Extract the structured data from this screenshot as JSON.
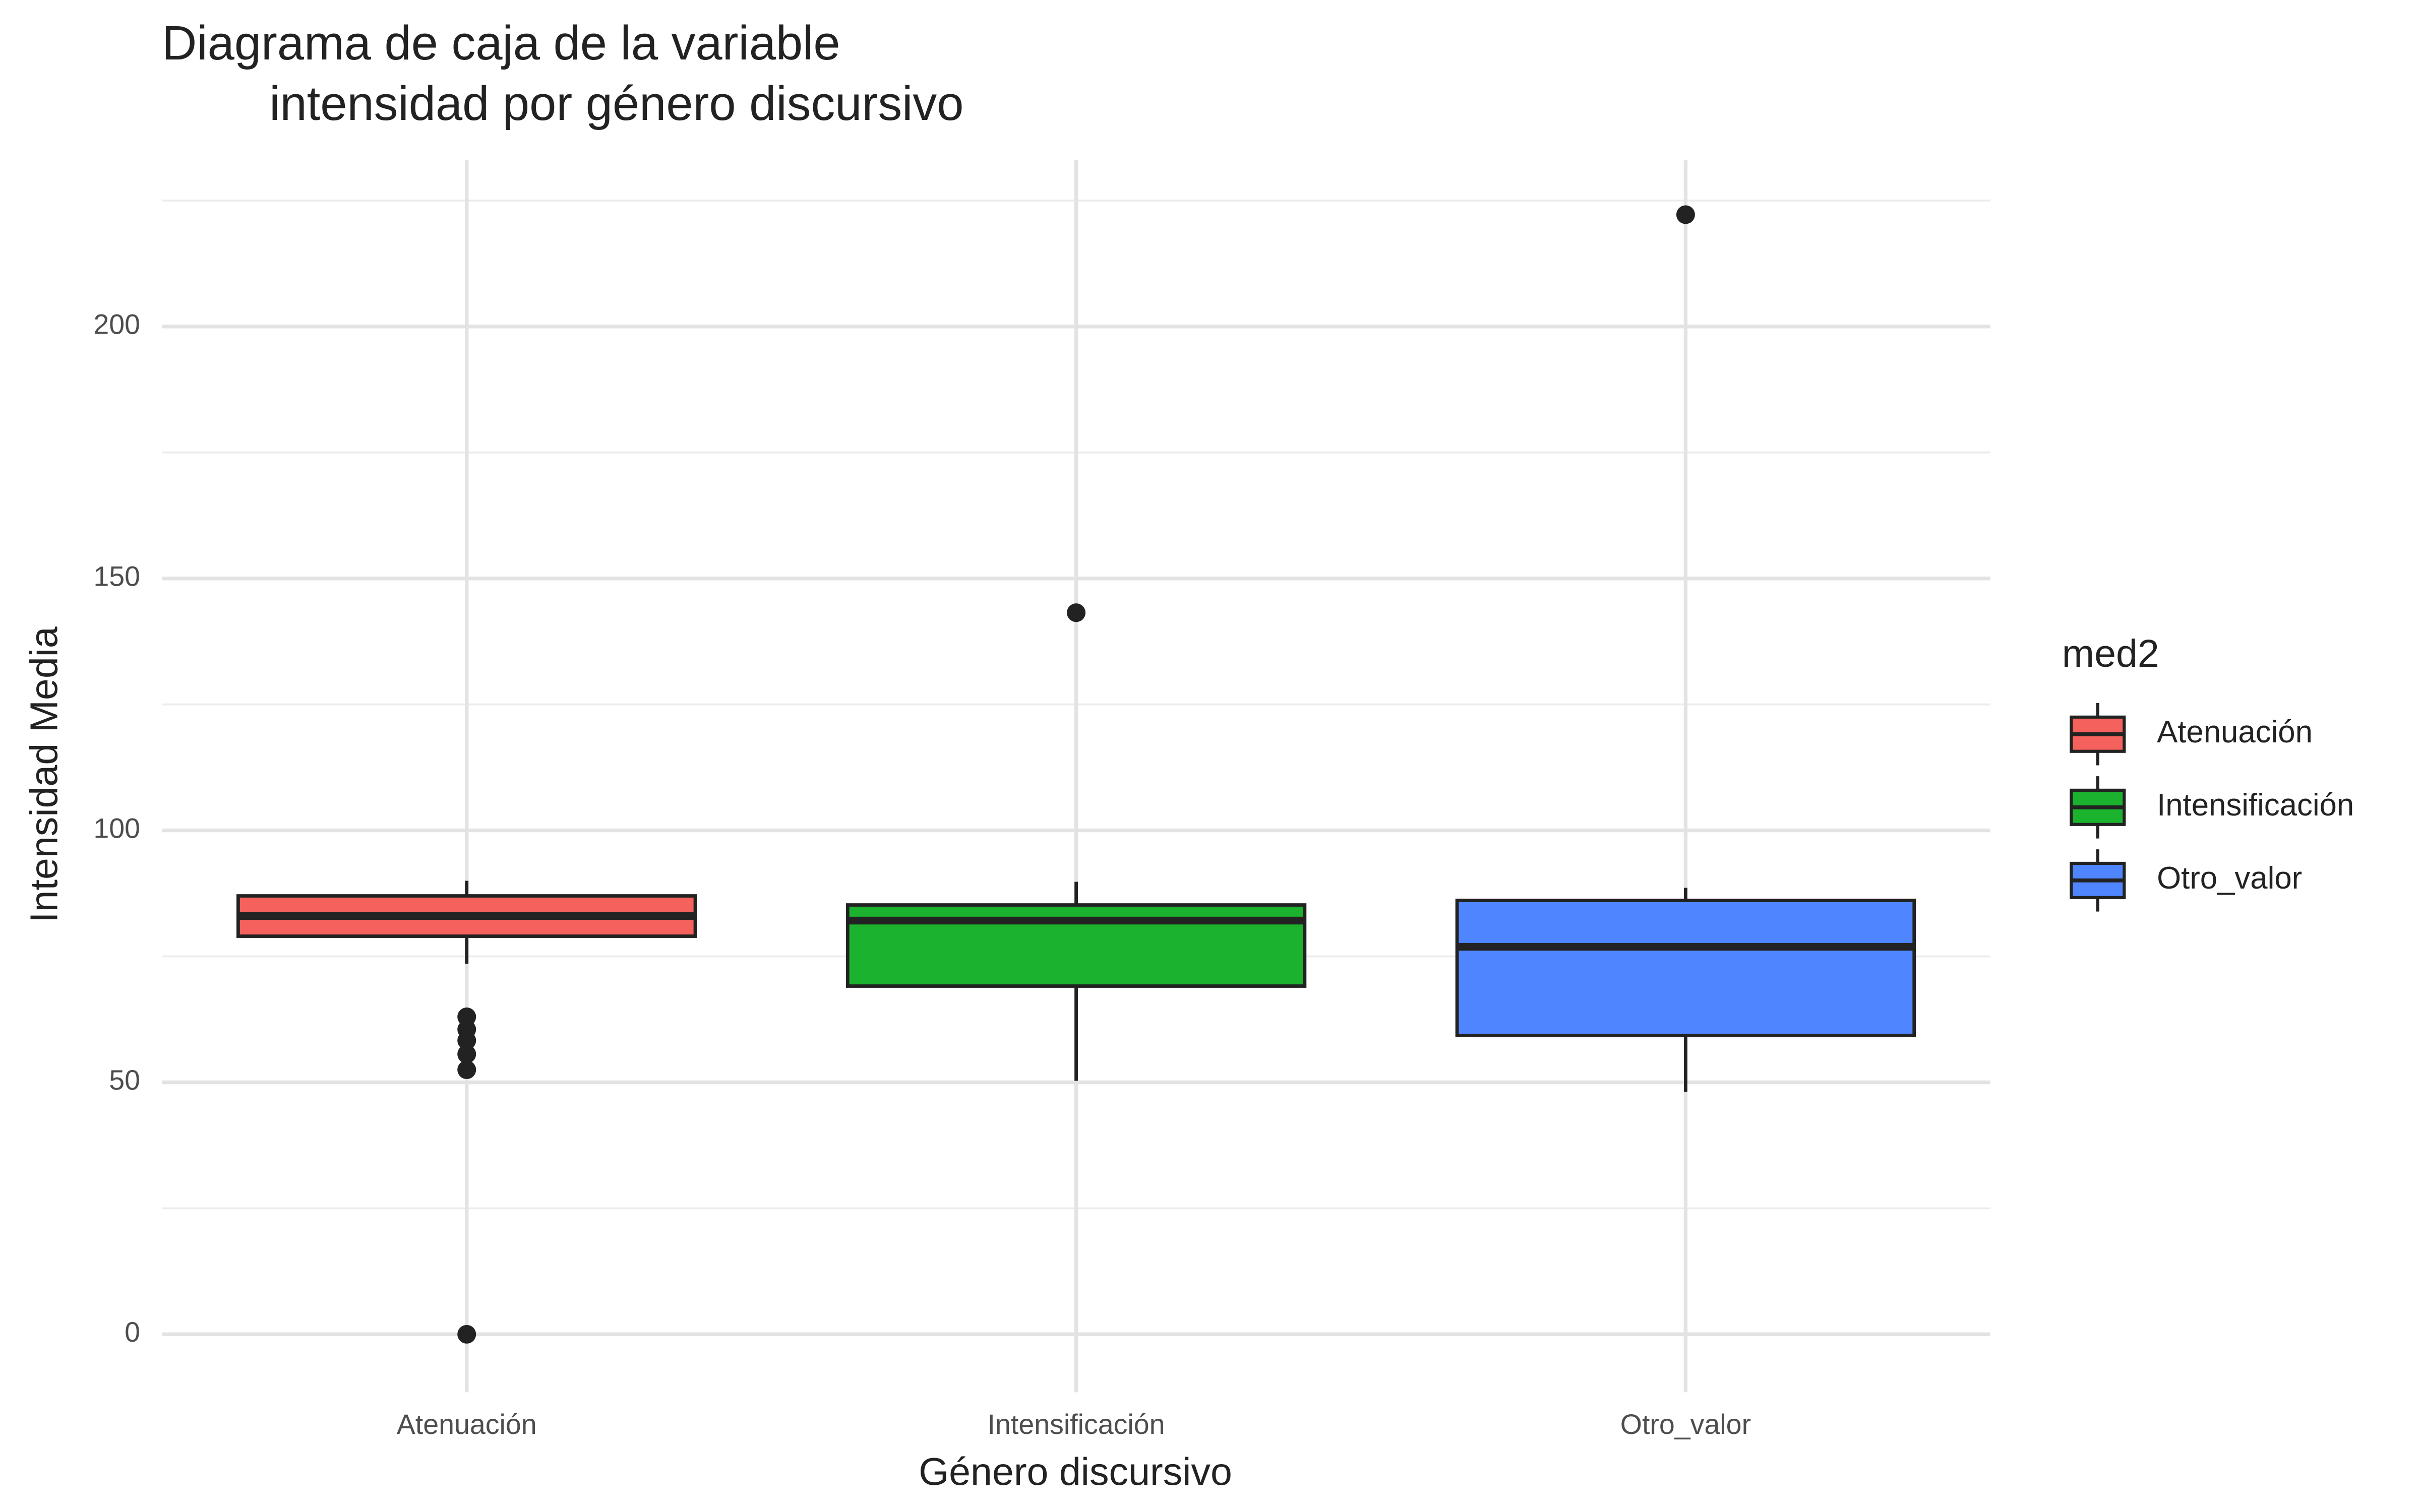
{
  "chart_data": {
    "type": "box",
    "title": [
      "Diagrama de caja de la variable",
      "intensidad por género discursivo"
    ],
    "x_label": "Género discursivo",
    "y_label": "Intensidad Media",
    "legend_title": "med2",
    "legend": "right",
    "categories": [
      "Atenuación",
      "Intensificación",
      "Otro_valor"
    ],
    "ylim": [
      -11.5,
      233
    ],
    "yticks": [
      0,
      50,
      100,
      150,
      200
    ],
    "minor_yticks": [
      25,
      75,
      125,
      175,
      225
    ],
    "grid": true,
    "series": [
      {
        "name": "Atenuación",
        "color": "#f5615c",
        "whisker_low": 73.5,
        "q1": 79,
        "median": 83,
        "q3": 87,
        "whisker_high": 90,
        "outliers": [
          63,
          60.5,
          58.3,
          55.6,
          52.5,
          0
        ]
      },
      {
        "name": "Intensificación",
        "color": "#1bb22d",
        "whisker_low": 50.3,
        "q1": 69.1,
        "median": 82.1,
        "q3": 85.2,
        "whisker_high": 89.8,
        "outliers": [
          143.2
        ]
      },
      {
        "name": "Otro_valor",
        "color": "#4f86ff",
        "whisker_low": 48.1,
        "q1": 59.3,
        "median": 76.9,
        "q3": 86.1,
        "whisker_high": 88.6,
        "outliers": [
          222.2
        ]
      }
    ]
  }
}
